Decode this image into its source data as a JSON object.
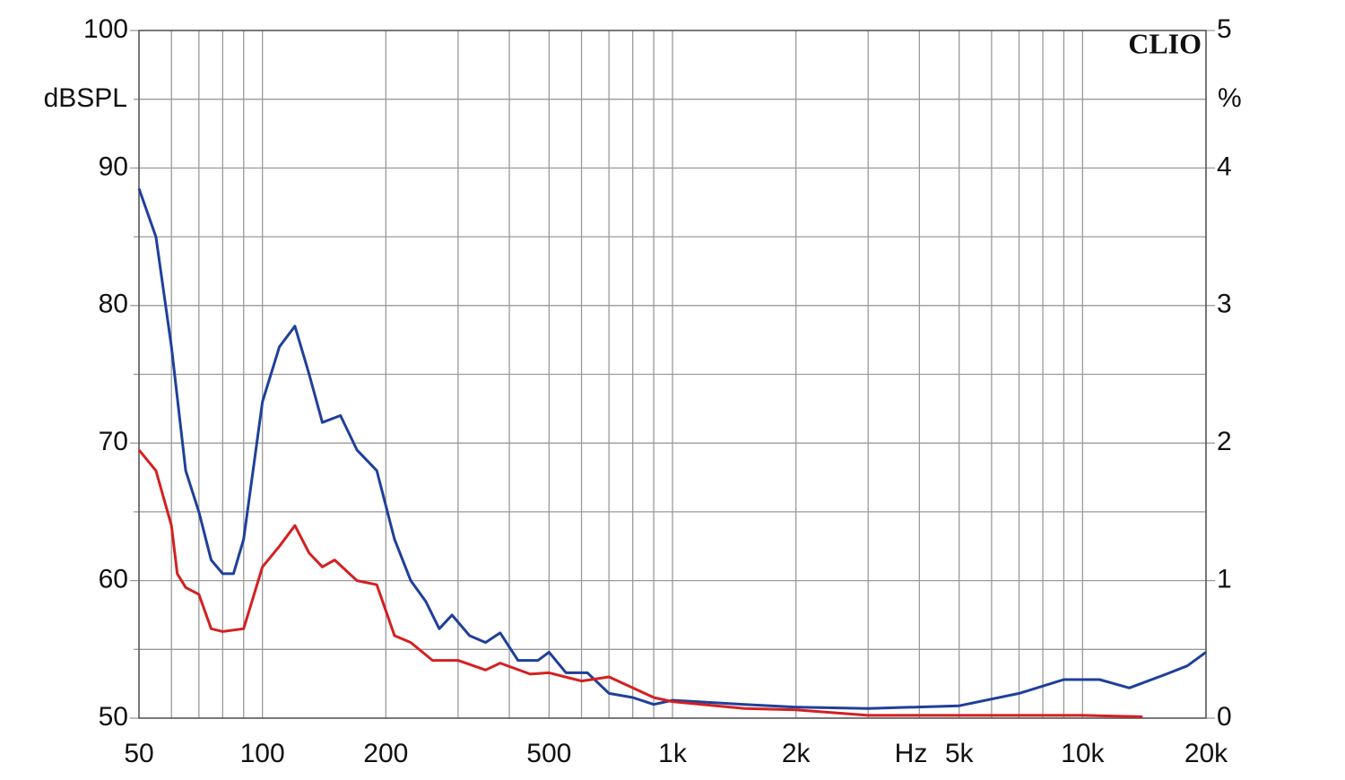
{
  "chart_data": {
    "type": "line",
    "title": "CLIO",
    "xlabel": "Hz",
    "ylabel": "dBSPL",
    "y2label": "%",
    "xscale": "log",
    "grid": true,
    "xlim": [
      50,
      20000
    ],
    "xticks": [
      50,
      100,
      200,
      500,
      {
        "value": 1000,
        "label": "1k"
      },
      {
        "value": 2000,
        "label": "2k"
      },
      {
        "value": 5000,
        "label": "5k"
      },
      {
        "value": 10000,
        "label": "10k"
      },
      {
        "value": 20000,
        "label": "20k"
      }
    ],
    "xminorticks": [
      60,
      70,
      80,
      90,
      300,
      400,
      600,
      700,
      800,
      900,
      3000,
      4000,
      6000,
      7000,
      8000,
      9000
    ],
    "ylim": [
      50,
      100
    ],
    "yticks": [
      50,
      60,
      70,
      80,
      90,
      100
    ],
    "yminorticks": [
      55,
      65,
      75,
      85,
      95
    ],
    "y2lim": [
      0,
      5
    ],
    "y2ticks": [
      0,
      1,
      2,
      3,
      4,
      5
    ],
    "series": [
      {
        "name": "Blue",
        "color": "#1f3f9a",
        "axis": "y2",
        "x": [
          50,
          55,
          60,
          65,
          70,
          75,
          80,
          85,
          90,
          100,
          110,
          120,
          130,
          140,
          155,
          170,
          190,
          210,
          230,
          250,
          270,
          290,
          320,
          350,
          380,
          420,
          470,
          500,
          550,
          620,
          700,
          800,
          900,
          1000,
          1500,
          2000,
          3000,
          5000,
          7000,
          9000,
          11000,
          13000,
          16000,
          18000,
          20000
        ],
        "values": [
          3.85,
          3.5,
          2.7,
          1.8,
          1.5,
          1.15,
          1.05,
          1.05,
          1.3,
          2.3,
          2.7,
          2.85,
          2.5,
          2.15,
          2.2,
          1.95,
          1.8,
          1.3,
          1.0,
          0.85,
          0.65,
          0.75,
          0.6,
          0.55,
          0.62,
          0.42,
          0.42,
          0.48,
          0.33,
          0.33,
          0.18,
          0.15,
          0.1,
          0.13,
          0.1,
          0.08,
          0.07,
          0.09,
          0.18,
          0.28,
          0.28,
          0.22,
          0.32,
          0.38,
          0.48
        ]
      },
      {
        "name": "Red",
        "color": "#d42020",
        "axis": "y2",
        "x": [
          50,
          55,
          60,
          62,
          65,
          70,
          75,
          80,
          90,
          100,
          110,
          120,
          130,
          140,
          150,
          170,
          190,
          210,
          230,
          260,
          300,
          350,
          380,
          450,
          500,
          600,
          700,
          900,
          1000,
          1500,
          2000,
          3000,
          5000,
          10000,
          14000
        ],
        "values": [
          1.95,
          1.8,
          1.4,
          1.05,
          0.95,
          0.9,
          0.65,
          0.63,
          0.65,
          1.1,
          1.25,
          1.4,
          1.2,
          1.1,
          1.15,
          1.0,
          0.97,
          0.6,
          0.55,
          0.42,
          0.42,
          0.35,
          0.4,
          0.32,
          0.33,
          0.27,
          0.3,
          0.15,
          0.12,
          0.07,
          0.06,
          0.02,
          0.02,
          0.02,
          0.01
        ]
      }
    ]
  }
}
